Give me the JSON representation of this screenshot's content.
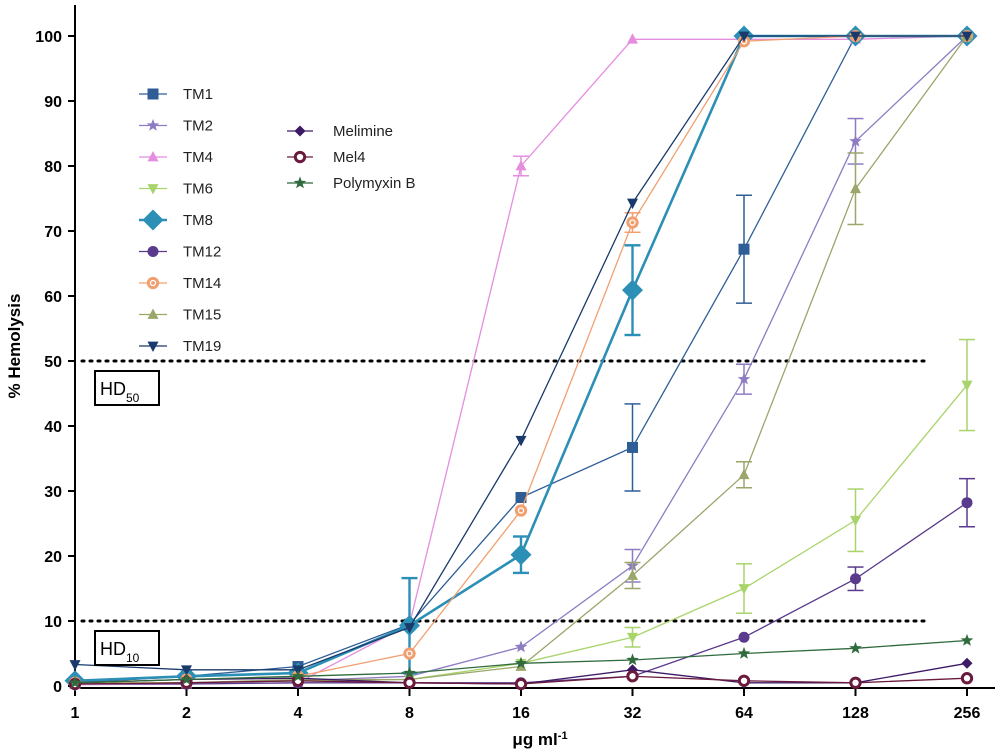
{
  "chart_data": {
    "type": "line",
    "xlabel": "μg ml",
    "xlabel_sup": "-1",
    "ylabel": "% Hemolysis",
    "x_scale": "log2",
    "x": [
      1,
      2,
      4,
      8,
      16,
      32,
      64,
      128,
      256
    ],
    "x_tick_labels": [
      "1",
      "2",
      "4",
      "8",
      "16",
      "32",
      "64",
      "128",
      "256"
    ],
    "ylim": [
      0,
      100
    ],
    "y_ticks": [
      0,
      10,
      20,
      30,
      40,
      50,
      60,
      70,
      80,
      90,
      100
    ],
    "grid": false,
    "legend_position": "top-left",
    "reference_lines": [
      {
        "y": 50,
        "label": "HD",
        "sub": "50"
      },
      {
        "y": 10,
        "label": "HD",
        "sub": "10"
      }
    ],
    "series": [
      {
        "name": "TM1",
        "color": "#2f5d96",
        "marker": "square",
        "values": [
          0.5,
          1.5,
          3.0,
          9.5,
          29.0,
          36.7,
          67.2,
          100,
          100
        ],
        "errors": [
          null,
          null,
          null,
          null,
          null,
          6.7,
          8.3,
          null,
          null
        ]
      },
      {
        "name": "TM2",
        "color": "#8e7cc3",
        "marker": "star",
        "values": [
          0.3,
          0.5,
          0.8,
          1.5,
          6.0,
          18.5,
          47.2,
          83.8,
          100
        ],
        "errors": [
          null,
          null,
          null,
          null,
          null,
          2.5,
          2.3,
          3.5,
          null
        ]
      },
      {
        "name": "TM4",
        "color": "#e58ee0",
        "marker": "triangle-up",
        "values": [
          0.2,
          0.3,
          0.5,
          9.5,
          80.0,
          99.5,
          99.5,
          99.5,
          100
        ],
        "errors": [
          null,
          null,
          null,
          null,
          1.5,
          null,
          null,
          null,
          null
        ]
      },
      {
        "name": "TM6",
        "color": "#a9d46b",
        "marker": "triangle-down",
        "values": [
          0.5,
          0.5,
          0.8,
          1.0,
          3.5,
          7.5,
          15.0,
          25.5,
          46.3
        ],
        "errors": [
          null,
          null,
          null,
          null,
          null,
          1.5,
          3.8,
          4.8,
          7.0
        ]
      },
      {
        "name": "TM8",
        "color": "#2b8fb6",
        "marker": "diamond",
        "values": [
          0.8,
          1.5,
          2.0,
          9.3,
          20.2,
          60.9,
          100,
          100,
          100
        ],
        "errors": [
          null,
          null,
          null,
          7.3,
          2.8,
          6.9,
          null,
          null,
          null
        ]
      },
      {
        "name": "TM12",
        "color": "#5a3a8c",
        "marker": "circle",
        "values": [
          0.3,
          0.3,
          0.5,
          0.5,
          0.5,
          1.5,
          7.5,
          16.5,
          28.2
        ],
        "errors": [
          null,
          null,
          null,
          null,
          null,
          null,
          null,
          1.8,
          3.7
        ]
      },
      {
        "name": "TM14",
        "color": "#f0a070",
        "marker": "circle-dot",
        "values": [
          0.5,
          1.0,
          1.5,
          5.0,
          27.0,
          71.3,
          99.2,
          100,
          100
        ],
        "errors": [
          null,
          null,
          null,
          null,
          null,
          1.5,
          null,
          null,
          null
        ]
      },
      {
        "name": "TM15",
        "color": "#9aa66a",
        "marker": "triangle-up",
        "values": [
          0.3,
          0.5,
          1.0,
          1.0,
          3.0,
          17.0,
          32.5,
          76.5,
          100
        ],
        "errors": [
          null,
          null,
          null,
          null,
          null,
          2.0,
          2.0,
          5.5,
          null
        ]
      },
      {
        "name": "TM19",
        "color": "#1a3a6b",
        "marker": "triangle-down",
        "values": [
          3.3,
          2.5,
          2.5,
          9.0,
          37.8,
          74.3,
          100,
          100,
          100
        ],
        "errors": [
          null,
          null,
          null,
          null,
          null,
          null,
          null,
          null,
          null
        ]
      },
      {
        "name": "Melimine",
        "color": "#3d1a66",
        "marker": "diamond-small",
        "values": [
          0.5,
          1.0,
          1.2,
          0.5,
          0.3,
          2.5,
          0.5,
          0.5,
          3.5
        ],
        "errors": [
          null,
          null,
          null,
          null,
          null,
          null,
          null,
          null,
          null
        ]
      },
      {
        "name": "Mel4",
        "color": "#6a1a3c",
        "marker": "circle-open",
        "values": [
          0.3,
          0.5,
          0.8,
          0.5,
          0.3,
          1.5,
          0.8,
          0.5,
          1.2
        ],
        "errors": [
          null,
          null,
          null,
          null,
          null,
          null,
          null,
          null,
          null
        ]
      },
      {
        "name": "Polymyxin B",
        "color": "#2f6b3c",
        "marker": "star-filled",
        "values": [
          0.5,
          1.0,
          1.5,
          2.0,
          3.5,
          4.0,
          5.0,
          5.8,
          7.0
        ],
        "errors": [
          null,
          null,
          null,
          null,
          null,
          null,
          null,
          null,
          null
        ]
      }
    ]
  }
}
